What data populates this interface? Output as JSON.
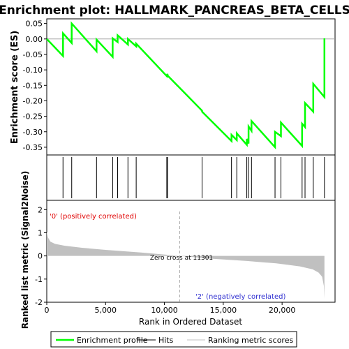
{
  "chart_data": {
    "type": "line",
    "title": "Enrichment plot: HALLMARK_PANCREAS_BETA_CELLS",
    "es_panel": {
      "ylabel": "Enrichment score (ES)",
      "ylim": [
        -0.375,
        0.065
      ],
      "yticks": [
        0.05,
        0.0,
        -0.05,
        -0.1,
        -0.15,
        -0.2,
        -0.25,
        -0.3,
        -0.35
      ],
      "ytick_labels": [
        "0.05",
        "0.00",
        "-0.05",
        "-0.10",
        "-0.15",
        "-0.20",
        "-0.25",
        "-0.30",
        "-0.35"
      ],
      "series": {
        "name": "Enrichment profile",
        "color": "#00ff00",
        "x": [
          0,
          1380,
          1380,
          2120,
          2120,
          4230,
          4230,
          5600,
          5600,
          6020,
          6020,
          6900,
          6900,
          7600,
          7600,
          10200,
          10200,
          10260,
          10260,
          13200,
          13200,
          15700,
          15700,
          16150,
          16150,
          17000,
          17000,
          17150,
          17150,
          17400,
          17400,
          19400,
          19400,
          19900,
          19900,
          21700,
          21700,
          21950,
          21950,
          22650,
          22650,
          23600,
          23600
        ],
        "y": [
          0.0,
          -0.055,
          0.018,
          -0.013,
          0.05,
          -0.04,
          -0.002,
          -0.058,
          0.002,
          -0.01,
          0.012,
          -0.018,
          0.0,
          -0.024,
          -0.015,
          -0.12,
          -0.118,
          -0.113,
          -0.118,
          -0.232,
          -0.235,
          -0.33,
          -0.31,
          -0.327,
          -0.305,
          -0.342,
          -0.323,
          -0.338,
          -0.283,
          -0.297,
          -0.265,
          -0.35,
          -0.3,
          -0.314,
          -0.27,
          -0.346,
          -0.274,
          -0.285,
          -0.207,
          -0.235,
          -0.145,
          -0.188,
          0.002
        ]
      }
    },
    "hits": {
      "name": "Hits",
      "positions": [
        1380,
        2120,
        4230,
        5600,
        6020,
        6900,
        7600,
        10200,
        10260,
        13200,
        15700,
        16150,
        17000,
        17150,
        17400,
        19400,
        19900,
        21700,
        21950,
        22650,
        23600
      ]
    },
    "color_bar": {
      "positive_label": "'0' (positively correlated)",
      "negative_label": "'2' (negatively correlated)",
      "segments": [
        {
          "from": 0,
          "to": 1100,
          "color": "#e8303a"
        },
        {
          "from": 1100,
          "to": 4400,
          "color": "#f25159"
        },
        {
          "from": 4400,
          "to": 6400,
          "color": "#f46a72"
        },
        {
          "from": 6400,
          "to": 8800,
          "color": "#f898a0"
        },
        {
          "from": 8800,
          "to": 11400,
          "color": "#fccde6"
        },
        {
          "from": 11400,
          "to": 13900,
          "color": "#dcd6f6"
        },
        {
          "from": 13900,
          "to": 16300,
          "color": "#c8bff2"
        },
        {
          "from": 16300,
          "to": 18300,
          "color": "#a89be8"
        },
        {
          "from": 18300,
          "to": 21600,
          "color": "#7c68de"
        },
        {
          "from": 21600,
          "to": 22700,
          "color": "#5a3fd4"
        },
        {
          "from": 22700,
          "to": 23600,
          "color": "#2a06b8"
        }
      ]
    },
    "metric_panel": {
      "ylabel": "Ranked list metric (Signal2Noise)",
      "ylim": [
        -2.0,
        2.4
      ],
      "yticks": [
        2,
        1,
        0,
        -1,
        -2
      ],
      "ytick_labels": [
        "2",
        "1",
        "0",
        "-1",
        "-2"
      ],
      "zero_cross_label": "Zero cross at 11301",
      "zero_cross": 11301,
      "fill_color": "#c0c0c0",
      "profile_x": [
        0,
        100,
        300,
        700,
        1500,
        3000,
        5000,
        8000,
        11301,
        14000,
        17000,
        19500,
        21500,
        22600,
        23100,
        23400,
        23550,
        23600
      ],
      "profile_y": [
        1.05,
        0.8,
        0.62,
        0.52,
        0.44,
        0.35,
        0.26,
        0.15,
        0.0,
        -0.12,
        -0.22,
        -0.32,
        -0.45,
        -0.58,
        -0.72,
        -0.9,
        -1.3,
        -1.85
      ]
    },
    "xaxis": {
      "xlabel": "Rank in Ordered Dataset",
      "xlim": [
        0,
        24500
      ],
      "xticks": [
        0,
        5000,
        10000,
        15000,
        20000
      ],
      "xtick_labels": [
        "0",
        "5,000",
        "10,000",
        "15,000",
        "20,000"
      ]
    },
    "legend": {
      "placement": "bottom",
      "entries": [
        {
          "label": "Enrichment profile",
          "color": "#00ff00"
        },
        {
          "label": "Hits",
          "color": "#000000"
        },
        {
          "label": "Ranking metric scores",
          "color": "#c0c0c0"
        }
      ]
    }
  }
}
